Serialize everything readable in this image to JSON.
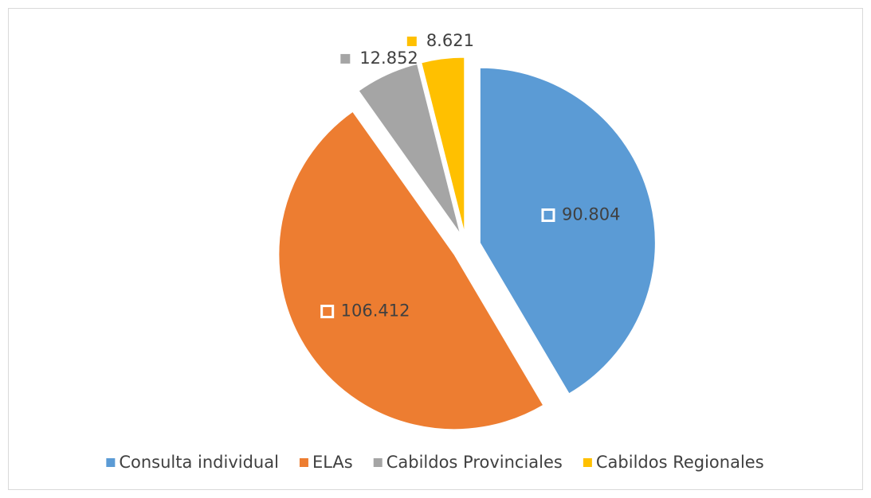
{
  "chart_data": {
    "type": "pie",
    "categories": [
      "Consulta individual",
      "ELAs",
      "Cabildos Provinciales",
      "Cabildos Regionales"
    ],
    "values": [
      90804,
      106412,
      12852,
      8621
    ],
    "value_labels": [
      "90.804",
      "106.412",
      "12.852",
      "8.621"
    ],
    "colors": [
      "#5b9bd5",
      "#ed7d31",
      "#a5a5a5",
      "#ffc000"
    ],
    "legend": "bottom"
  }
}
